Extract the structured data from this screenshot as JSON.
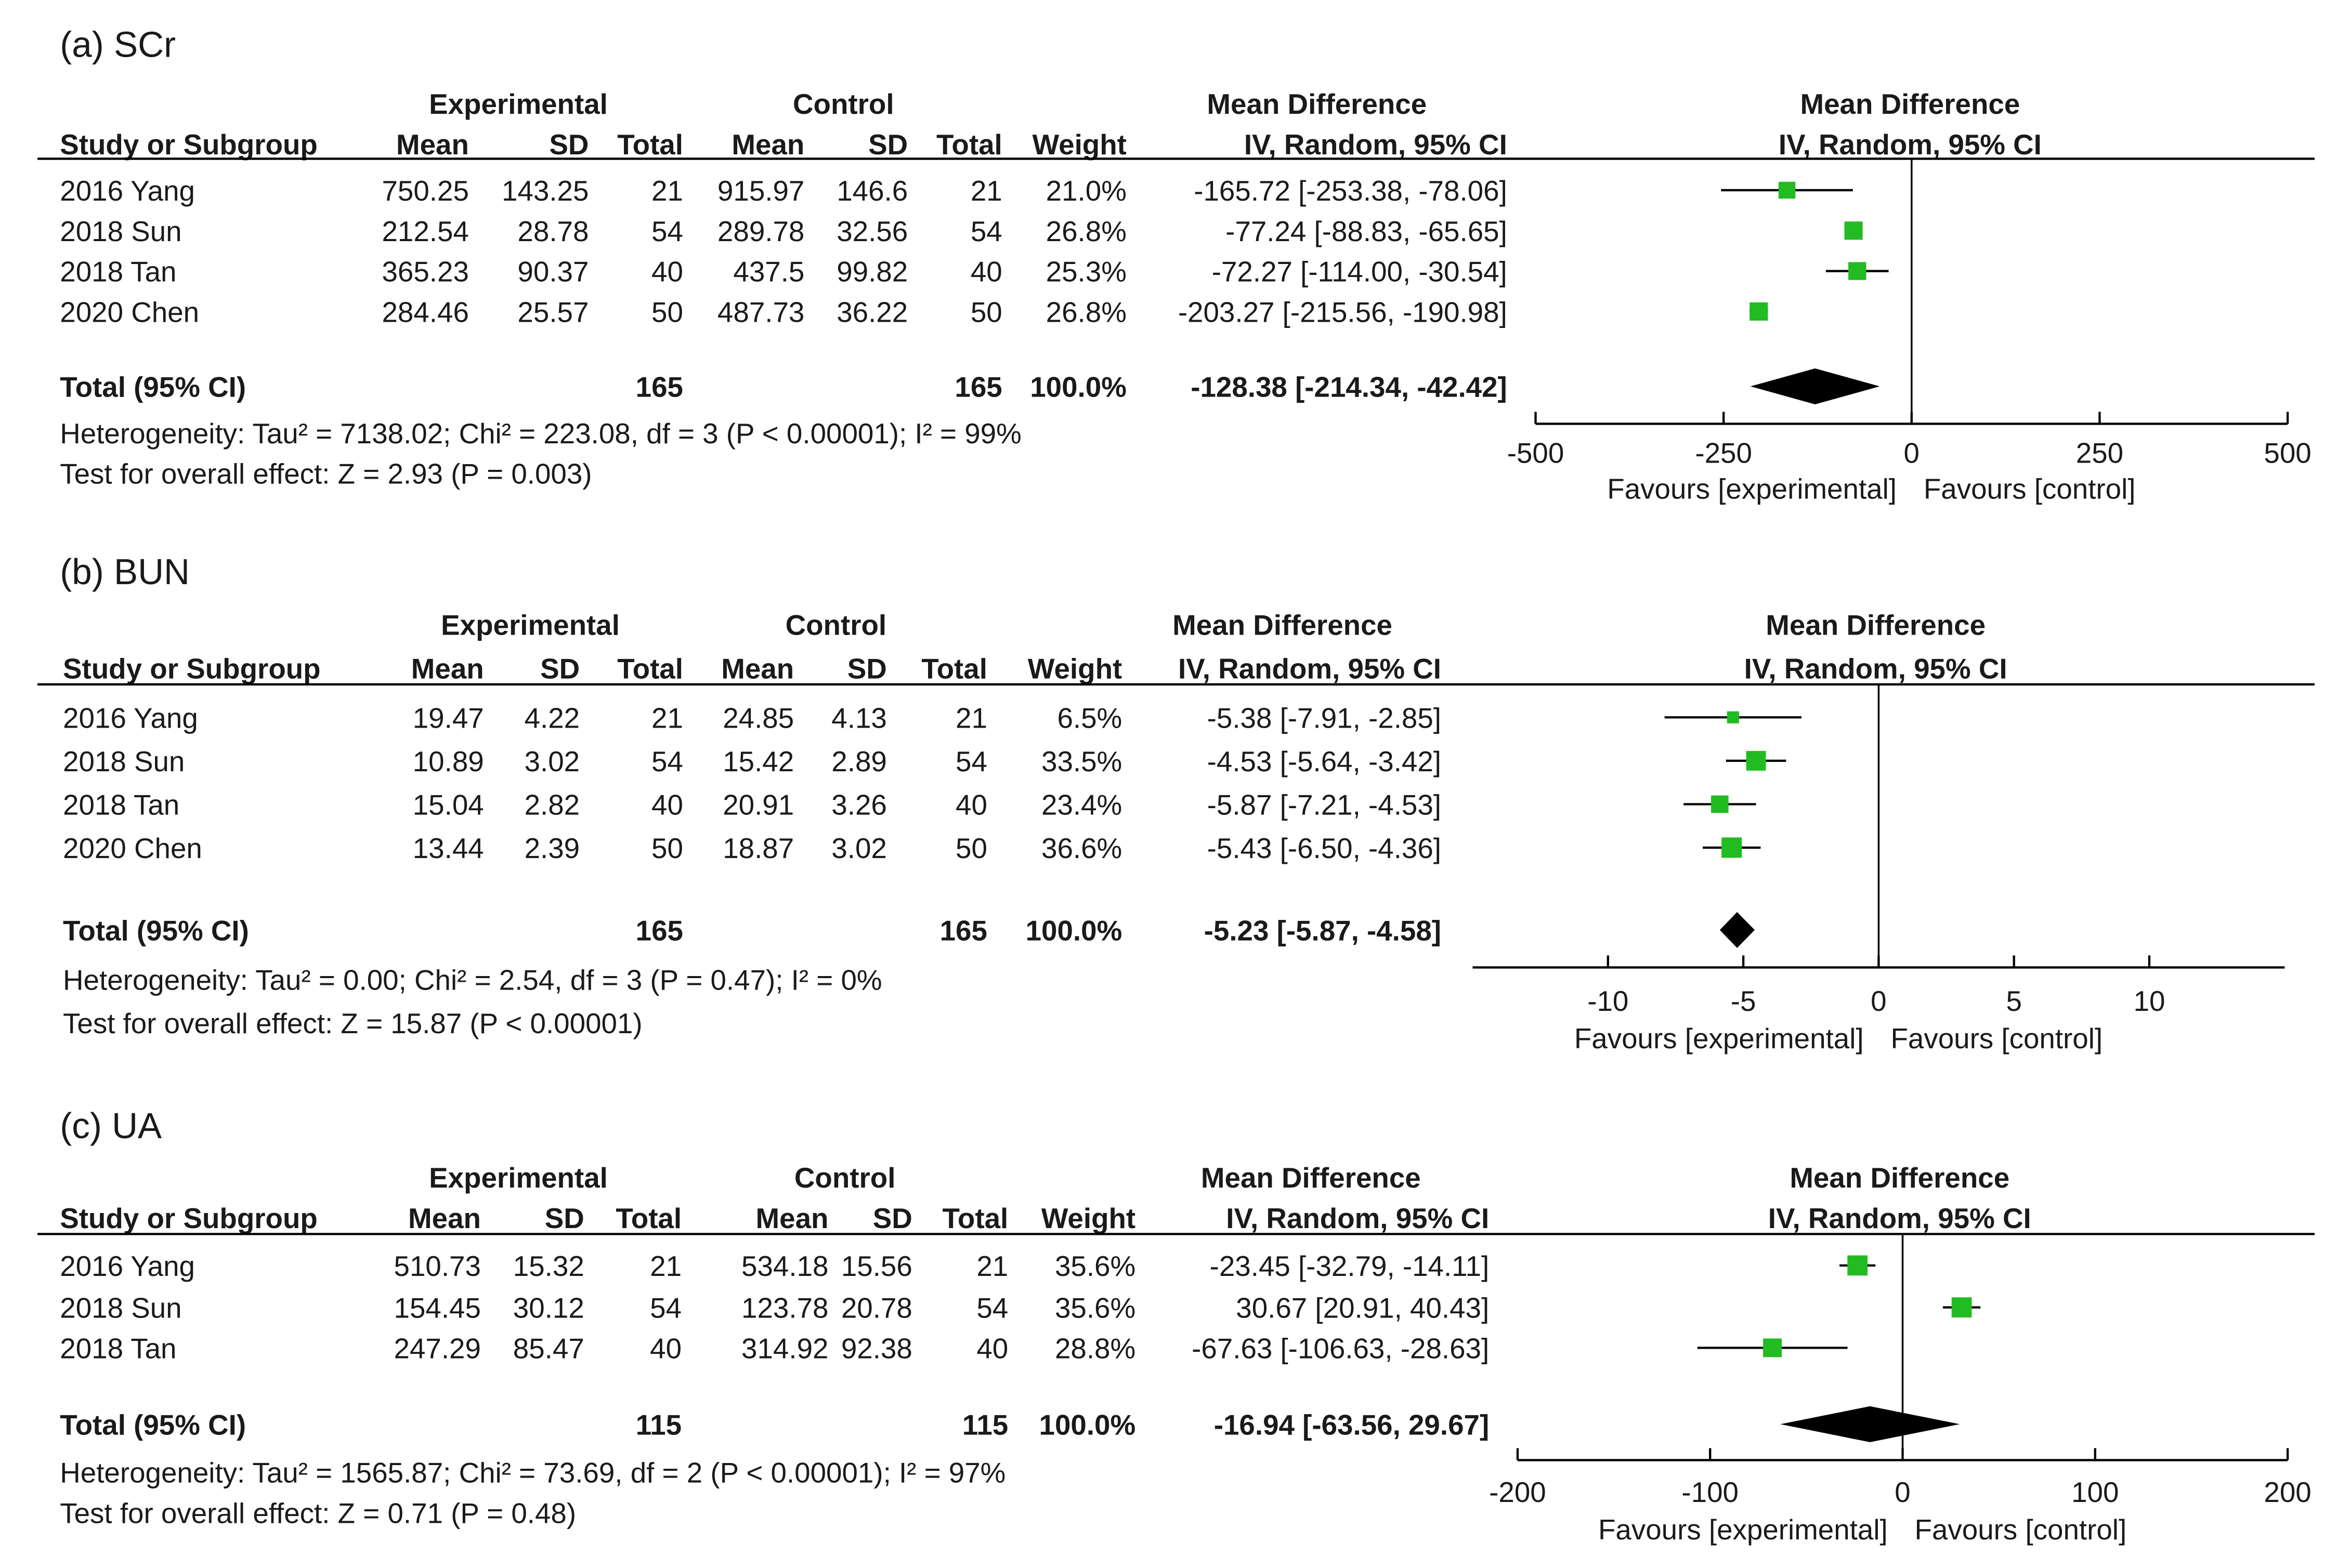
{
  "headers": {
    "experimental": "Experimental",
    "control": "Control",
    "study": "Study or Subgroup",
    "mean": "Mean",
    "sd": "SD",
    "total": "Total",
    "weight": "Weight",
    "md": "Mean Difference",
    "md_sub": "IV, Random, 95% CI"
  },
  "colors": {
    "study_marker": "#22bb22",
    "total_marker": "#000000",
    "line": "#000000"
  },
  "chart_data": [
    {
      "type": "forest",
      "panel": "(a) SCr",
      "studies": [
        {
          "name": "2016 Yang",
          "exp_mean": "750.25",
          "exp_sd": "143.25",
          "exp_total": "21",
          "ctl_mean": "915.97",
          "ctl_sd": "146.6",
          "ctl_total": "21",
          "weight": "21.0%",
          "ci_text": "-165.72 [-253.38, -78.06]",
          "md": -165.72,
          "lo": -253.38,
          "hi": -78.06,
          "w": 21.0
        },
        {
          "name": "2018 Sun",
          "exp_mean": "212.54",
          "exp_sd": "28.78",
          "exp_total": "54",
          "ctl_mean": "289.78",
          "ctl_sd": "32.56",
          "ctl_total": "54",
          "weight": "26.8%",
          "ci_text": "-77.24 [-88.83, -65.65]",
          "md": -77.24,
          "lo": -88.83,
          "hi": -65.65,
          "w": 26.8
        },
        {
          "name": "2018 Tan",
          "exp_mean": "365.23",
          "exp_sd": "90.37",
          "exp_total": "40",
          "ctl_mean": "437.5",
          "ctl_sd": "99.82",
          "ctl_total": "40",
          "weight": "25.3%",
          "ci_text": "-72.27 [-114.00, -30.54]",
          "md": -72.27,
          "lo": -114.0,
          "hi": -30.54,
          "w": 25.3
        },
        {
          "name": "2020 Chen",
          "exp_mean": "284.46",
          "exp_sd": "25.57",
          "exp_total": "50",
          "ctl_mean": "487.73",
          "ctl_sd": "36.22",
          "ctl_total": "50",
          "weight": "26.8%",
          "ci_text": "-203.27 [-215.56, -190.98]",
          "md": -203.27,
          "lo": -215.56,
          "hi": -190.98,
          "w": 26.8
        }
      ],
      "total": {
        "label": "Total (95% CI)",
        "exp_total": "165",
        "ctl_total": "165",
        "weight": "100.0%",
        "ci_text": "-128.38 [-214.34, -42.42]",
        "md": -128.38,
        "lo": -214.34,
        "hi": -42.42
      },
      "heterogeneity": "Heterogeneity: Tau² = 7138.02; Chi² = 223.08, df = 3 (P < 0.00001); I² = 99%",
      "overall": "Test for overall effect: Z = 2.93 (P = 0.003)",
      "xlim": [
        -500,
        500
      ],
      "ticks": [
        -500,
        -250,
        0,
        250,
        500
      ],
      "tick_labels": [
        "-500",
        "-250",
        "0",
        "250",
        "500"
      ],
      "favours_left": "Favours [experimental]",
      "favours_right": "Favours [control]"
    },
    {
      "type": "forest",
      "panel": "(b) BUN",
      "studies": [
        {
          "name": "2016 Yang",
          "exp_mean": "19.47",
          "exp_sd": "4.22",
          "exp_total": "21",
          "ctl_mean": "24.85",
          "ctl_sd": "4.13",
          "ctl_total": "21",
          "weight": "6.5%",
          "ci_text": "-5.38 [-7.91, -2.85]",
          "md": -5.38,
          "lo": -7.91,
          "hi": -2.85,
          "w": 6.5
        },
        {
          "name": "2018 Sun",
          "exp_mean": "10.89",
          "exp_sd": "3.02",
          "exp_total": "54",
          "ctl_mean": "15.42",
          "ctl_sd": "2.89",
          "ctl_total": "54",
          "weight": "33.5%",
          "ci_text": "-4.53 [-5.64, -3.42]",
          "md": -4.53,
          "lo": -5.64,
          "hi": -3.42,
          "w": 33.5
        },
        {
          "name": "2018 Tan",
          "exp_mean": "15.04",
          "exp_sd": "2.82",
          "exp_total": "40",
          "ctl_mean": "20.91",
          "ctl_sd": "3.26",
          "ctl_total": "40",
          "weight": "23.4%",
          "ci_text": "-5.87 [-7.21, -4.53]",
          "md": -5.87,
          "lo": -7.21,
          "hi": -4.53,
          "w": 23.4
        },
        {
          "name": "2020 Chen",
          "exp_mean": "13.44",
          "exp_sd": "2.39",
          "exp_total": "50",
          "ctl_mean": "18.87",
          "ctl_sd": "3.02",
          "ctl_total": "50",
          "weight": "36.6%",
          "ci_text": "-5.43 [-6.50, -4.36]",
          "md": -5.43,
          "lo": -6.5,
          "hi": -4.36,
          "w": 36.6
        }
      ],
      "total": {
        "label": "Total (95% CI)",
        "exp_total": "165",
        "ctl_total": "165",
        "weight": "100.0%",
        "ci_text": "-5.23 [-5.87, -4.58]",
        "md": -5.23,
        "lo": -5.87,
        "hi": -4.58
      },
      "heterogeneity": "Heterogeneity: Tau² = 0.00; Chi² = 2.54, df = 3 (P = 0.47); I² = 0%",
      "overall": "Test for overall effect: Z = 15.87 (P < 0.00001)",
      "xlim": [
        -15,
        15
      ],
      "ticks": [
        -10,
        -5,
        0,
        5,
        10
      ],
      "tick_labels": [
        "-10",
        "-5",
        "0",
        "5",
        "10"
      ],
      "favours_left": "Favours [experimental]",
      "favours_right": "Favours [control]"
    },
    {
      "type": "forest",
      "panel": "(c) UA",
      "studies": [
        {
          "name": "2016 Yang",
          "exp_mean": "510.73",
          "exp_sd": "15.32",
          "exp_total": "21",
          "ctl_mean": "534.18",
          "ctl_sd": "15.56",
          "ctl_total": "21",
          "weight": "35.6%",
          "ci_text": "-23.45 [-32.79, -14.11]",
          "md": -23.45,
          "lo": -32.79,
          "hi": -14.11,
          "w": 35.6
        },
        {
          "name": "2018 Sun",
          "exp_mean": "154.45",
          "exp_sd": "30.12",
          "exp_total": "54",
          "ctl_mean": "123.78",
          "ctl_sd": "20.78",
          "ctl_total": "54",
          "weight": "35.6%",
          "ci_text": "30.67 [20.91, 40.43]",
          "md": 30.67,
          "lo": 20.91,
          "hi": 40.43,
          "w": 35.6
        },
        {
          "name": "2018 Tan",
          "exp_mean": "247.29",
          "exp_sd": "85.47",
          "exp_total": "40",
          "ctl_mean": "314.92",
          "ctl_sd": "92.38",
          "ctl_total": "40",
          "weight": "28.8%",
          "ci_text": "-67.63 [-106.63, -28.63]",
          "md": -67.63,
          "lo": -106.63,
          "hi": -28.63,
          "w": 28.8
        }
      ],
      "total": {
        "label": "Total (95% CI)",
        "exp_total": "115",
        "ctl_total": "115",
        "weight": "100.0%",
        "ci_text": "-16.94 [-63.56, 29.67]",
        "md": -16.94,
        "lo": -63.56,
        "hi": 29.67
      },
      "heterogeneity": "Heterogeneity: Tau² = 1565.87; Chi² = 73.69, df = 2 (P < 0.00001); I² = 97%",
      "overall": "Test for overall effect: Z = 0.71 (P = 0.48)",
      "xlim": [
        -200,
        200
      ],
      "ticks": [
        -200,
        -100,
        0,
        100,
        200
      ],
      "tick_labels": [
        "-200",
        "-100",
        "0",
        "100",
        "200"
      ],
      "favours_left": "Favours [experimental]",
      "favours_right": "Favours [control]"
    }
  ]
}
